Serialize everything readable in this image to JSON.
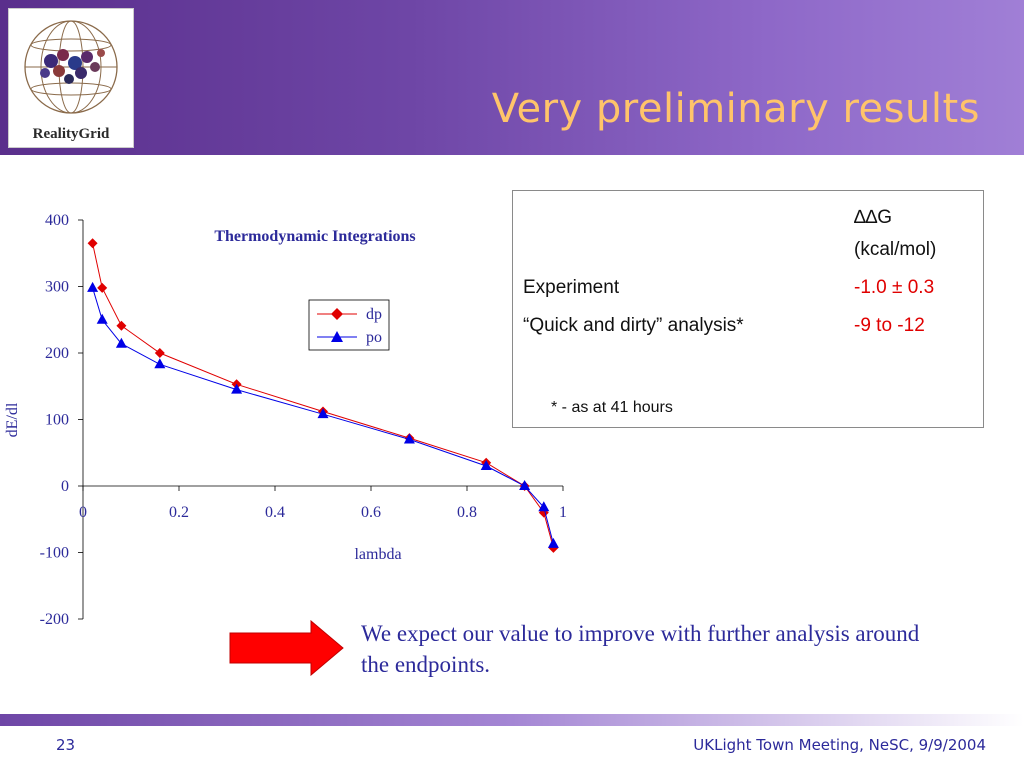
{
  "slide": {
    "title": "Very preliminary results",
    "logo_text": "RealityGrid",
    "page_number": "23",
    "footer": "UKLight Town Meeting, NeSC, 9/9/2004",
    "conclusion": "We expect our value to improve with further analysis around the endpoints."
  },
  "table": {
    "header_line1": "∆∆G",
    "header_line2": "(kcal/mol)",
    "rows": [
      {
        "label": "Experiment",
        "value": "-1.0 ± 0.3"
      },
      {
        "label": "“Quick and dirty” analysis*",
        "value": "-9 to -12"
      }
    ],
    "note": "* - as at 41 hours"
  },
  "colors": {
    "dp": "#e00000",
    "po": "#0000e6",
    "title_text": "#ffc46a",
    "chart_text": "#2c2a9a"
  },
  "chart_data": {
    "type": "line",
    "title": "Thermodynamic Integrations",
    "xlabel": "lambda",
    "ylabel": "dE/dl",
    "xlim": [
      0,
      1
    ],
    "ylim": [
      -200,
      400
    ],
    "x_ticks": [
      "0",
      "0.2",
      "0.4",
      "0.6",
      "0.8",
      "1"
    ],
    "y_ticks": [
      "400",
      "300",
      "200",
      "100",
      "0",
      "-100",
      "-200"
    ],
    "grid": false,
    "legend_position": "upper-right",
    "series": [
      {
        "name": "dp",
        "marker": "diamond",
        "x": [
          0.02,
          0.04,
          0.08,
          0.16,
          0.32,
          0.5,
          0.68,
          0.84,
          0.92,
          0.96,
          0.98
        ],
        "y": [
          365,
          298,
          241,
          200,
          153,
          112,
          72,
          35,
          0,
          -40,
          -93
        ]
      },
      {
        "name": "po",
        "marker": "triangle",
        "x": [
          0.02,
          0.04,
          0.08,
          0.16,
          0.32,
          0.5,
          0.68,
          0.84,
          0.92,
          0.96,
          0.98
        ],
        "y": [
          298,
          250,
          214,
          183,
          145,
          108,
          70,
          30,
          0,
          -32,
          -87
        ]
      }
    ]
  }
}
